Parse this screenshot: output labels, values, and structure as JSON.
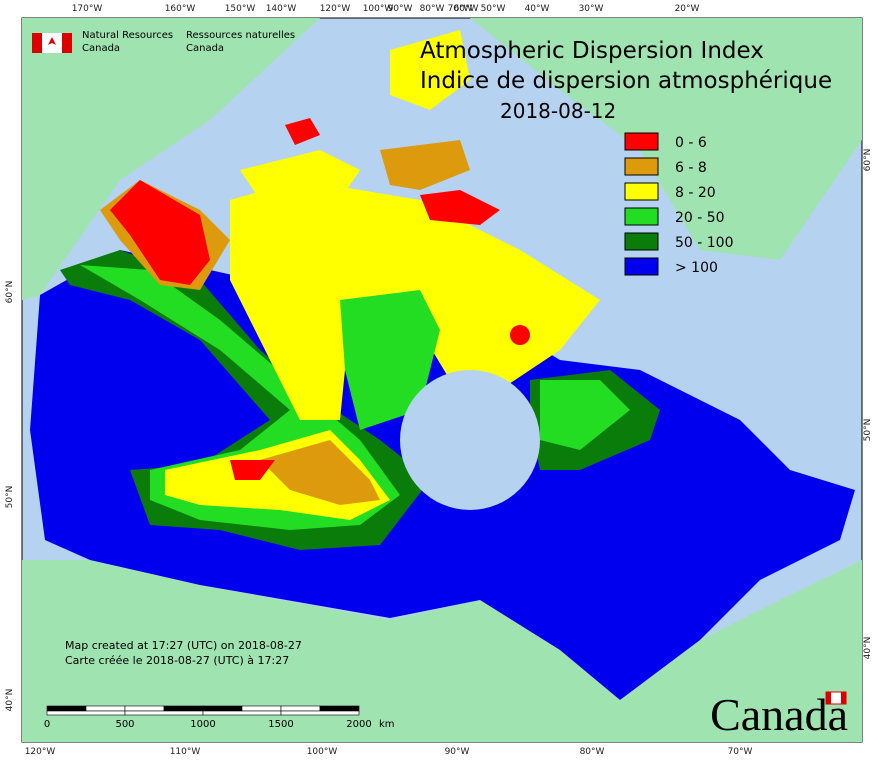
{
  "agency": {
    "en": [
      "Natural Resources",
      "Canada"
    ],
    "fr": [
      "Ressources naturelles",
      "Canada"
    ]
  },
  "title": [
    "Atmospheric Dispersion Index",
    "Indice de dispersion atmosphérique"
  ],
  "date": "2018-08-12",
  "legend": [
    {
      "label": "0 - 6",
      "color": "#ff0000"
    },
    {
      "label": "6 - 8",
      "color": "#dc9a0c"
    },
    {
      "label": "8 - 20",
      "color": "#ffff00"
    },
    {
      "label": "20 - 50",
      "color": "#22dd22"
    },
    {
      "label": "50 - 100",
      "color": "#0a7c0a"
    },
    {
      "label": "> 100",
      "color": "#0000ee"
    }
  ],
  "graticule": {
    "top": [
      "170°W",
      "160°W",
      "150°W",
      "140°W",
      "120°W",
      "100°W",
      "90°W",
      "80°W",
      "70°W",
      "60°W",
      "50°W",
      "40°W",
      "30°W",
      "20°W"
    ],
    "bottom": [
      "120°W",
      "110°W",
      "100°W",
      "90°W",
      "80°W",
      "70°W"
    ],
    "left": [
      "60°N",
      "50°N",
      "40°N"
    ],
    "right": [
      "60°N",
      "50°N",
      "40°N"
    ]
  },
  "notes": [
    "Map created at 17:27 (UTC) on 2018-08-27",
    "Carte créée le 2018-08-27 (UTC) à 17:27"
  ],
  "scale": {
    "labels": [
      "0",
      "500",
      "1000",
      "1500",
      "2000"
    ],
    "unit": "km"
  },
  "wordmark": "Canada"
}
